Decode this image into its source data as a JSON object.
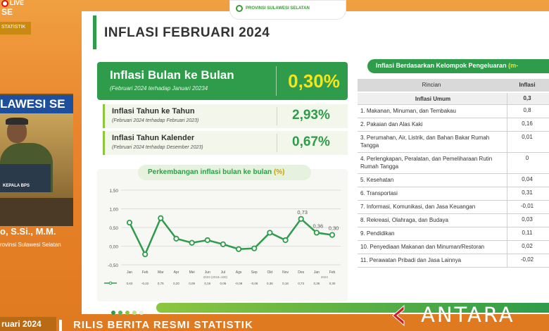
{
  "overlay": {
    "live_label": "LIVE",
    "se_label": "SE",
    "stat_label": "STATISTIK",
    "banner": "LAWESI SE",
    "podium_label": "KEPALA BPS",
    "name": "o, S.Si., M.M.",
    "title": "rovinsi Sulawesi Selatan"
  },
  "slide": {
    "logo_text": "PROVINSI SULAWESI SELATAN",
    "title": "INFLASI FEBRUARI 2024",
    "main_kpi": {
      "title": "Inflasi Bulan ke Bulan",
      "sub": "(Februari 2024 terhadap Januari 20234",
      "value": "0,30%"
    },
    "kpi_yoy": {
      "title": "Inflasi Tahun ke Tahun",
      "sub": "(Februari 2024 terhadap Februari 2023)",
      "value": "2,93%"
    },
    "kpi_ytd": {
      "title": "Inflasi Tahun Kalender",
      "sub": "(Februari 2024 terhadap Desember 2023)",
      "value": "0,67%"
    },
    "chart_title": "Perkembangan inflasi bulan ke bulan",
    "chart_title_unit": "(%)",
    "table": {
      "title": "Inflasi Berdasarkan Kelompok Pengeluaran",
      "title_cut": " (m-",
      "col_left": "Rincian",
      "col_right": "Inflasi",
      "rows": [
        {
          "label": "Inflasi Umum",
          "value": "0,3"
        },
        {
          "label": "1. Makanan, Minuman, dan Tembakau",
          "value": "0,8"
        },
        {
          "label": "2. Pakaian dan Alas Kaki",
          "value": "0,16"
        },
        {
          "label": "3. Perumahan, Air, Listrik, dan Bahan Bakar Rumah Tangga",
          "value": "0,01"
        },
        {
          "label": "4. Perlengkapan, Peralatan, dan Pemeliharaan Rutin Rumah Tangga",
          "value": "0"
        },
        {
          "label": "5. Kesehatan",
          "value": "0,04"
        },
        {
          "label": "6. Transportasi",
          "value": "0,31"
        },
        {
          "label": "7. Informasi, Komunikasi, dan Jasa Keuangan",
          "value": "-0,01"
        },
        {
          "label": "8. Rekreasi, Olahraga, dan Budaya",
          "value": "0,03"
        },
        {
          "label": "9. Pendidikan",
          "value": "0,11"
        },
        {
          "label": "10. Penyediaan Makanan dan Minuman/Restoran",
          "value": "0,02"
        },
        {
          "label": "11. Perawatan Pribadi dan Jasa Lainnya",
          "value": "-0,02"
        }
      ]
    }
  },
  "chart_data": {
    "type": "line",
    "title": "Perkembangan inflasi bulan ke bulan (%)",
    "ylim": [
      -0.5,
      1.5
    ],
    "yticks": [
      "1,50",
      "1,00",
      "0,50",
      "0,00",
      "-0,50"
    ],
    "x": [
      "Jan",
      "Feb",
      "Mar",
      "Apr",
      "Mei",
      "Jun",
      "Jul",
      "Ags",
      "Sep",
      "Okt",
      "Nov",
      "Des",
      "Jan",
      "Feb"
    ],
    "x_group_label": "2023 (2018=100)",
    "x_group_label_2": "2024",
    "series": [
      {
        "name": "",
        "color": "#2e9c4a",
        "values": [
          0.63,
          -0.22,
          0.75,
          0.2,
          0.09,
          0.16,
          0.05,
          -0.08,
          -0.06,
          0.36,
          0.16,
          0.73,
          0.36,
          0.3
        ],
        "labels": [
          "0,63",
          "-0,22",
          "0,75",
          "0,20",
          "0,09",
          "0,16",
          "0,05",
          "-0,08",
          "-0,06",
          "0,36",
          "0,16",
          "0,73",
          "0,36",
          "0,30"
        ]
      }
    ],
    "annotations": [
      {
        "index": 11,
        "text": "0,73"
      },
      {
        "index": 12,
        "text": "0,36"
      },
      {
        "index": 13,
        "text": "0,30"
      }
    ]
  },
  "footer": {
    "ticker_chip": "ruari 2024",
    "ticker_text": "RILIS BERITA RESMI STATISTIK",
    "watermark": "ANTARA"
  },
  "colors": {
    "green": "#2e9c4a",
    "lime": "#8cc63f",
    "yellow": "#f5e51a",
    "orange": "#e9842c"
  }
}
